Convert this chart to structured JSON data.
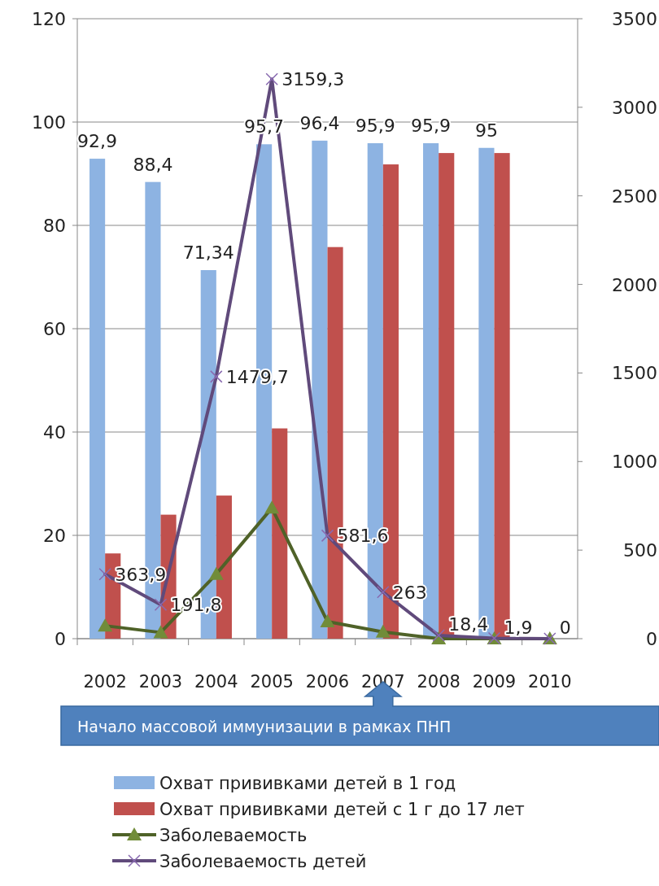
{
  "chart_data": {
    "type": "bar",
    "categories": [
      "2002",
      "2003",
      "2004",
      "2005",
      "2006",
      "2007",
      "2008",
      "2009",
      "2010"
    ],
    "series": [
      {
        "name": "Охват прививками детей в 1 год",
        "color": "#8db3e2",
        "values": [
          92.9,
          88.4,
          71.34,
          95.7,
          96.4,
          95.9,
          95.9,
          95,
          null
        ],
        "value_labels": [
          "92,9",
          "88,4",
          "71,34",
          "95,7",
          "96,4",
          "95,9",
          "95,9",
          "95",
          null
        ]
      },
      {
        "name": "Охват прививками детей с 1 г до 17 лет",
        "color": "#c0504d",
        "values": [
          16.5,
          24,
          27.7,
          40.7,
          75.8,
          91.8,
          94,
          94,
          null
        ]
      },
      {
        "name": "Заболеваемость",
        "type": "line",
        "color": "#4f6228",
        "marker": "triangle",
        "values": [
          2.5,
          1.2,
          12.5,
          25.3,
          3.3,
          1.3,
          0,
          0,
          0
        ]
      },
      {
        "name": "Заболеваемость детей",
        "type": "line",
        "axis": "y2",
        "color": "#604a7b",
        "marker": "cross",
        "values": [
          363.9,
          191.8,
          1479.7,
          3159.3,
          581.6,
          263,
          18.4,
          1.9,
          0
        ],
        "value_labels": [
          "363,9",
          "191,8",
          "1479,7",
          "3159,3",
          "581,6",
          "263",
          "18,4",
          "1,9",
          "0"
        ]
      }
    ],
    "ylim": [
      0,
      120
    ],
    "yticks": [
      0,
      20,
      40,
      60,
      80,
      100,
      120
    ],
    "y2lim": [
      0,
      3500
    ],
    "y2ticks": [
      0,
      500,
      1000,
      1500,
      2000,
      2500,
      3000,
      3500
    ],
    "grid": "y",
    "legend": "bottom",
    "annotations": [
      "Начало массовой иммунизации в рамках ПНП"
    ]
  }
}
